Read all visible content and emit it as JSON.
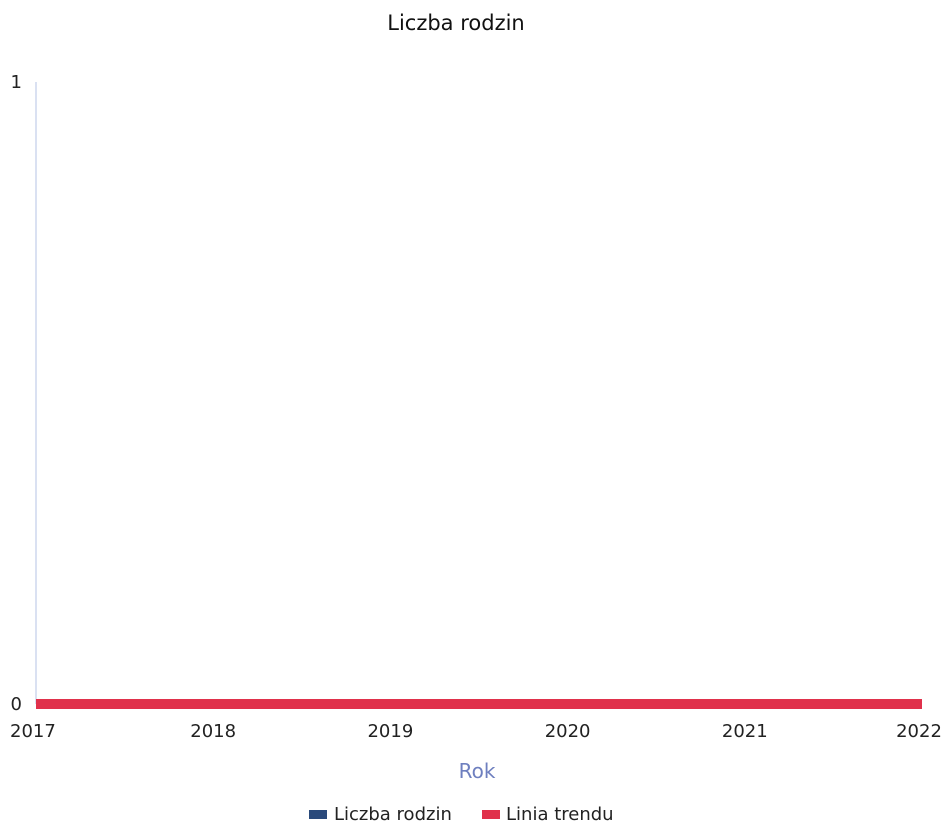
{
  "chart_data": {
    "type": "line",
    "title": "Liczba rodzin",
    "xlabel": "Rok",
    "ylabel": "",
    "x": [
      2017,
      2018,
      2019,
      2020,
      2021,
      2022
    ],
    "x_tick_labels": [
      "2017",
      "2018",
      "2019",
      "2020",
      "2021",
      "2022"
    ],
    "y_tick_labels": [
      "0",
      "1"
    ],
    "xlim": [
      2017,
      2022
    ],
    "ylim": [
      0,
      1
    ],
    "grid": false,
    "legend_position": "bottom-center",
    "series": [
      {
        "name": "Liczba rodzin",
        "values": [
          0,
          0,
          0,
          0,
          0,
          0
        ],
        "color": "#2a4a7b"
      },
      {
        "name": "Linia trendu",
        "values": [
          0,
          0,
          0,
          0,
          0,
          0
        ],
        "color": "#e0314b"
      }
    ],
    "axis_color": "#b4c3e6",
    "xlabel_color": "#6e7fbf"
  }
}
